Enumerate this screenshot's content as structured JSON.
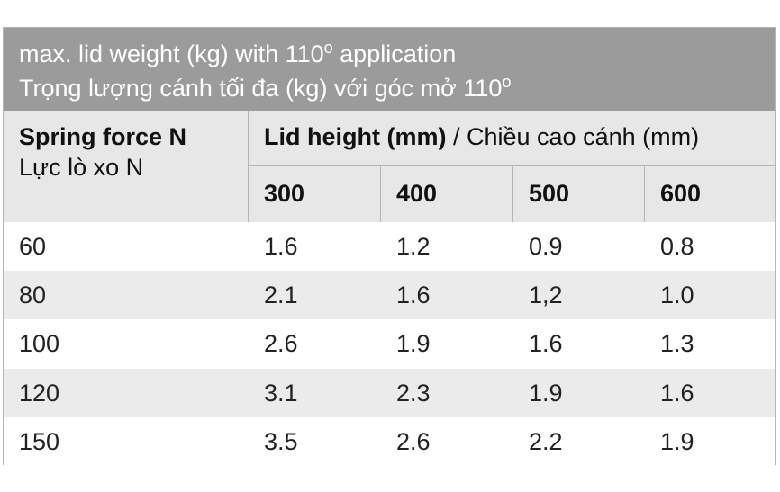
{
  "title": {
    "line1": {
      "text": "max. lid weight (kg) with 110",
      "sup": "o",
      "after": " application"
    },
    "line2": {
      "text": "Trọng lượng cánh tối đa (kg) với góc mở 110",
      "sup": "o"
    }
  },
  "table": {
    "corner": {
      "bold": "Spring force N",
      "sub": "Lực lò xo N"
    },
    "group": {
      "bold": "Lid height (mm)",
      "rest": " / Chiều cao cánh (mm)"
    },
    "columns": [
      "300",
      "400",
      "500",
      "600"
    ],
    "rows": [
      [
        "60",
        "1.6",
        "1.2",
        "0.9",
        "0.8"
      ],
      [
        "80",
        "2.1",
        "1.6",
        "1,2",
        "1.0"
      ],
      [
        "100",
        "2.6",
        "1.9",
        "1.6",
        "1.3"
      ],
      [
        "120",
        "3.1",
        "2.3",
        "1.9",
        "1.6"
      ],
      [
        "150",
        "3.5",
        "2.6",
        "2.2",
        "1.9"
      ]
    ]
  }
}
